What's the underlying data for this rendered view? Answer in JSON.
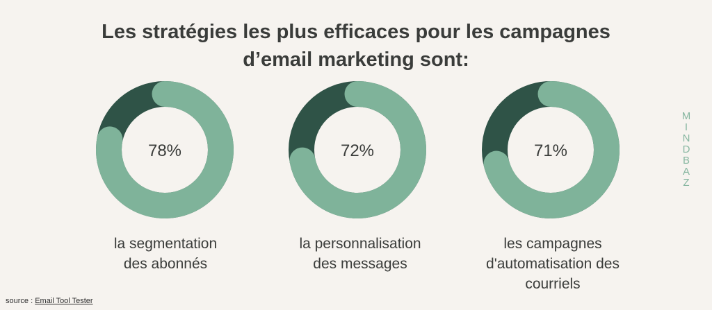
{
  "title": {
    "line1": "Les stratégies les plus efficaces pour les campagnes",
    "line2": "d’email marketing sont:"
  },
  "brand": {
    "letters": [
      "M",
      "I",
      "N",
      "D",
      "B",
      "A",
      "Z"
    ]
  },
  "source": {
    "label": "source :",
    "link_text": "Email Tool Tester"
  },
  "colors": {
    "light": "#7fb39a",
    "dark": "#2f5347",
    "background": "#f6f3ef",
    "text": "#3a3c3a"
  },
  "chart_data": {
    "type": "pie",
    "donut": true,
    "charts": [
      {
        "value": 78,
        "label_text": "78%",
        "caption_lines": [
          "la segmentation",
          "des abonnés"
        ]
      },
      {
        "value": 72,
        "label_text": "72%",
        "caption_lines": [
          "la personnalisation",
          "des messages"
        ]
      },
      {
        "value": 71,
        "label_text": "71%",
        "caption_lines": [
          "les campagnes",
          "d'automatisation des",
          "courriels"
        ]
      }
    ]
  }
}
